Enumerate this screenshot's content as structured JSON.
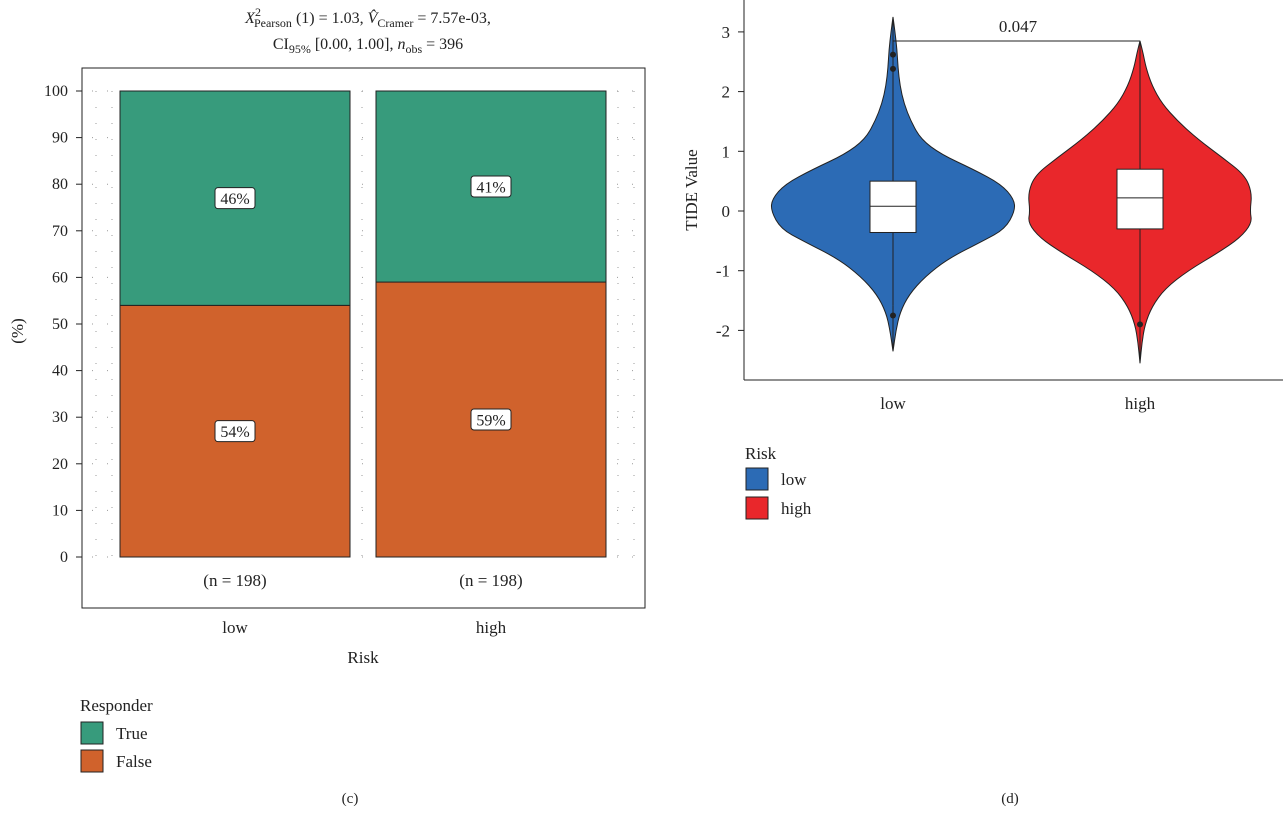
{
  "chart_data": [
    {
      "type": "bar",
      "subtype": "stacked-percent",
      "title_lines": [
        "X²Pearson (1) = 1.03, V̂Cramer = 7.57e-03,",
        "CI95% [0.00, 1.00], nobs = 396"
      ],
      "title_parts": {
        "chi_symbol": "X",
        "chi_sup": "2",
        "chi_sub": "Pearson",
        "chi_rest": " (1) = 1.03, ",
        "v_symbol": "V̂",
        "v_sub": "Cramer",
        "v_rest": " = 7.57e-03,",
        "ci_label": "CI",
        "ci_sub": "95%",
        "ci_rest": " [0.00, 1.00], ",
        "n_symbol": "n",
        "n_sub": "obs",
        "n_rest": " = 396"
      },
      "xlabel": "Risk",
      "ylabel": "(%)",
      "categories": [
        "low",
        "high"
      ],
      "counts": [
        "(n = 198)",
        "(n = 198)"
      ],
      "ylim": [
        0,
        100
      ],
      "yticks": [
        "0",
        "10",
        "20",
        "30",
        "40",
        "50",
        "60",
        "70",
        "80",
        "90",
        "100"
      ],
      "series": [
        {
          "name": "False",
          "values": [
            54,
            59
          ],
          "labels": [
            "54%",
            "59%"
          ],
          "color": "#d0622c"
        },
        {
          "name": "True",
          "values": [
            46,
            41
          ],
          "labels": [
            "46%",
            "41%"
          ],
          "color": "#379b7c"
        }
      ],
      "legend": {
        "title": "Responder",
        "items": [
          "True",
          "False"
        ],
        "placement": "bottom-left"
      },
      "grid": "dotted",
      "panel_label": "(c)"
    },
    {
      "type": "violin",
      "ylabel": "TIDE Value",
      "xlabel": "",
      "categories": [
        "low",
        "high"
      ],
      "ylim": [
        -2.5,
        3.3
      ],
      "yticks": [
        "-2",
        "-1",
        "0",
        "1",
        "2",
        "3"
      ],
      "groups": [
        {
          "name": "low",
          "color": "#2c6bb5",
          "min": -2.35,
          "max": 3.25,
          "q1": -0.36,
          "median": 0.08,
          "q3": 0.5,
          "whisker_low": -1.58,
          "whisker_high": 1.65,
          "outliers": [
            -1.75,
            2.38,
            2.62
          ]
        },
        {
          "name": "high",
          "color": "#e9272b",
          "min": -2.55,
          "max": 2.85,
          "q1": -0.3,
          "median": 0.22,
          "q3": 0.7,
          "whisker_low": -1.88,
          "whisker_high": 2.85,
          "outliers": [
            -1.9
          ]
        }
      ],
      "comparison": {
        "label": "0.047",
        "y": 2.85
      },
      "legend": {
        "title": "Risk",
        "items": [
          "low",
          "high"
        ],
        "placement": "bottom-left"
      },
      "panel_label": "(d)"
    }
  ]
}
